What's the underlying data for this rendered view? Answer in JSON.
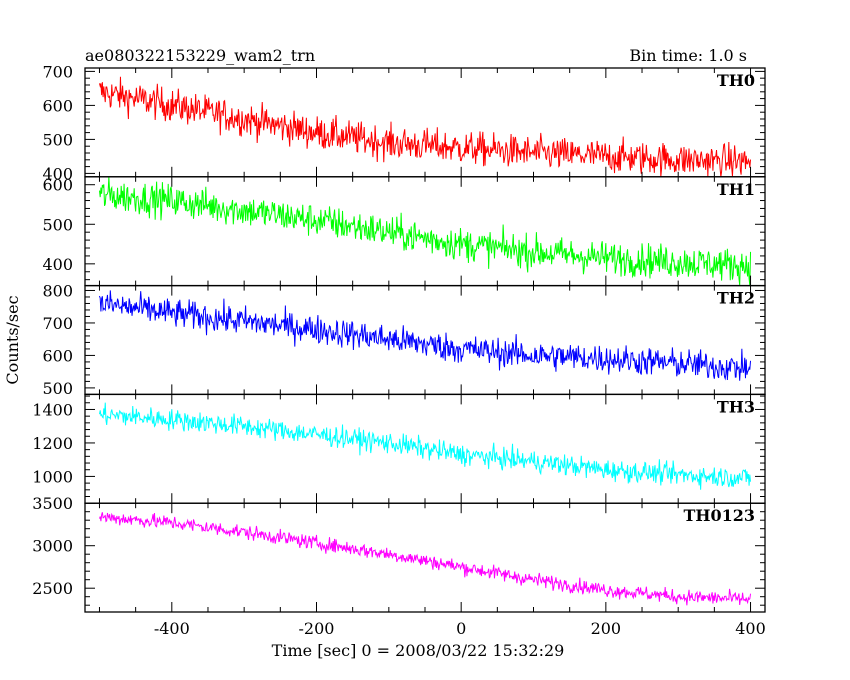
{
  "chart_data": {
    "type": "line",
    "title": "ae080322153229_wam2_trn",
    "subtitle": "Bin time: 1.0 s",
    "xlabel": "Time [sec] 0 = 2008/03/22 15:32:29",
    "ylabel": "Counts/sec",
    "xlim": [
      -520,
      420
    ],
    "x_ticks": [
      -400,
      -200,
      0,
      200,
      400
    ],
    "x_range": [
      -500,
      400
    ],
    "grid": false,
    "panels": [
      {
        "name": "TH0",
        "color": "#ff0000",
        "ylim": [
          390,
          710
        ],
        "y_ticks": [
          400,
          500,
          600,
          700
        ],
        "trend": [
          640,
          600,
          560,
          520,
          490,
          475,
          460,
          450,
          440,
          435
        ],
        "noise": 35
      },
      {
        "name": "TH1",
        "color": "#00ff00",
        "ylim": [
          345,
          620
        ],
        "y_ticks": [
          400,
          500,
          600
        ],
        "trend": [
          575,
          560,
          535,
          510,
          480,
          450,
          430,
          415,
          405,
          395
        ],
        "noise": 30
      },
      {
        "name": "TH2",
        "color": "#0000ff",
        "ylim": [
          480,
          815
        ],
        "y_ticks": [
          500,
          600,
          700,
          800
        ],
        "trend": [
          760,
          730,
          705,
          680,
          650,
          620,
          600,
          590,
          575,
          560
        ],
        "noise": 32
      },
      {
        "name": "TH3",
        "color": "#00ffff",
        "ylim": [
          840,
          1490
        ],
        "y_ticks": [
          1000,
          1200,
          1400
        ],
        "trend": [
          1370,
          1340,
          1300,
          1250,
          1200,
          1130,
          1090,
          1040,
          1010,
          990
        ],
        "noise": 45
      },
      {
        "name": "TH0123",
        "color": "#ff00ff",
        "ylim": [
          2220,
          3500
        ],
        "y_ticks": [
          2500,
          3000,
          3500
        ],
        "trend": [
          3340,
          3270,
          3160,
          3030,
          2900,
          2750,
          2600,
          2480,
          2400,
          2370
        ],
        "noise": 60
      }
    ]
  }
}
